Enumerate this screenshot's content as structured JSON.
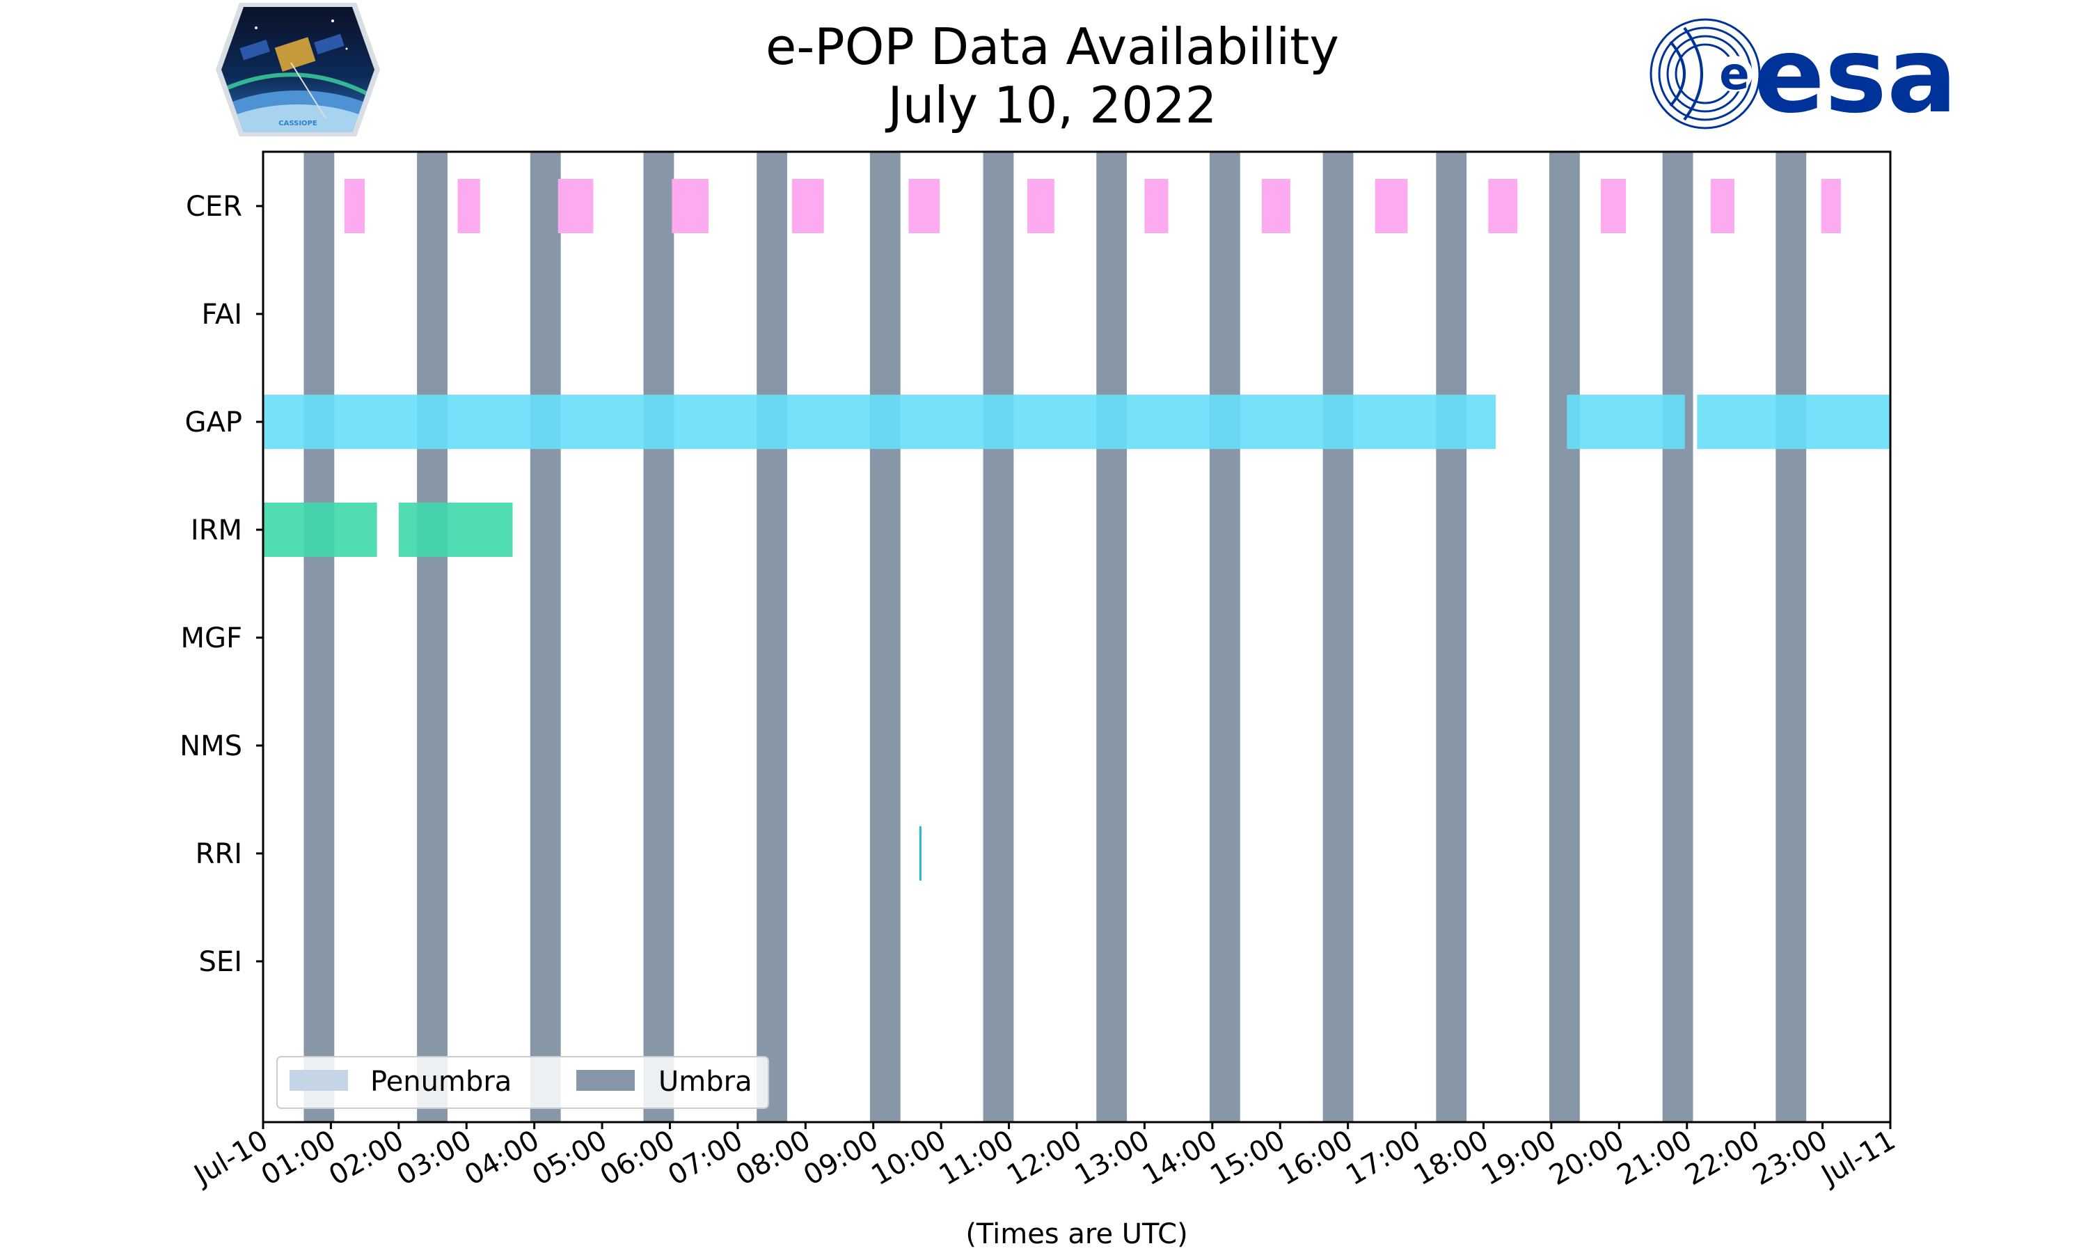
{
  "chart_data": {
    "type": "timeline",
    "title": [
      "e-POP Data Availability",
      "July 10, 2022"
    ],
    "xlabel": "(Times are UTC)",
    "x_range_hours": [
      0,
      24
    ],
    "x_tick_labels": [
      "Jul-10",
      "01:00",
      "02:00",
      "03:00",
      "04:00",
      "05:00",
      "06:00",
      "07:00",
      "08:00",
      "09:00",
      "10:00",
      "11:00",
      "12:00",
      "13:00",
      "14:00",
      "15:00",
      "16:00",
      "17:00",
      "18:00",
      "19:00",
      "20:00",
      "21:00",
      "22:00",
      "23:00",
      "Jul-11"
    ],
    "instruments": [
      "CER",
      "FAI",
      "GAP",
      "IRM",
      "MGF",
      "NMS",
      "RRI",
      "SEI"
    ],
    "colors": {
      "umbra": "#8797a8",
      "penumbra": "#c7d4e5",
      "CER": "#fdaaf0",
      "GAP": "#67dff8",
      "IRM": "#3fd8ab",
      "RRI": "#22b8d8"
    },
    "umbra_intervals": [
      [
        0.6,
        1.05
      ],
      [
        2.27,
        2.72
      ],
      [
        3.94,
        4.39
      ],
      [
        5.61,
        6.06
      ],
      [
        7.28,
        7.73
      ],
      [
        8.95,
        9.4
      ],
      [
        10.62,
        11.07
      ],
      [
        12.29,
        12.74
      ],
      [
        13.96,
        14.41
      ],
      [
        15.63,
        16.08
      ],
      [
        17.3,
        17.75
      ],
      [
        18.97,
        19.42
      ],
      [
        20.64,
        21.09
      ],
      [
        22.31,
        22.76
      ]
    ],
    "penumbra_intervals": [],
    "series": [
      {
        "name": "CER",
        "intervals": [
          [
            1.2,
            1.5
          ],
          [
            2.87,
            3.2
          ],
          [
            4.35,
            4.87
          ],
          [
            6.03,
            6.57
          ],
          [
            7.8,
            8.27
          ],
          [
            9.52,
            9.98
          ],
          [
            11.27,
            11.67
          ],
          [
            13.0,
            13.35
          ],
          [
            14.73,
            15.15
          ],
          [
            16.4,
            16.88
          ],
          [
            18.07,
            18.5
          ],
          [
            19.73,
            20.1
          ],
          [
            21.35,
            21.7
          ],
          [
            22.98,
            23.27
          ]
        ]
      },
      {
        "name": "FAI",
        "intervals": []
      },
      {
        "name": "GAP",
        "intervals": [
          [
            0.0,
            18.18
          ],
          [
            19.23,
            20.97
          ],
          [
            21.15,
            24.0
          ]
        ]
      },
      {
        "name": "IRM",
        "intervals": [
          [
            0.0,
            1.68
          ],
          [
            2.0,
            3.68
          ]
        ]
      },
      {
        "name": "MGF",
        "intervals": []
      },
      {
        "name": "NMS",
        "intervals": []
      },
      {
        "name": "RRI",
        "intervals": [
          [
            9.68,
            9.71
          ]
        ]
      },
      {
        "name": "SEI",
        "intervals": []
      }
    ],
    "legend": {
      "placement": "lower-left",
      "entries": [
        {
          "label": "Penumbra",
          "color_key": "penumbra"
        },
        {
          "label": "Umbra",
          "color_key": "umbra"
        }
      ]
    }
  },
  "logos": {
    "left": {
      "icon": "cassiope-mission-logo",
      "text": "CASSIOPE"
    },
    "right": {
      "icon": "esa-logo",
      "text": "esa",
      "color": "#003399"
    }
  }
}
